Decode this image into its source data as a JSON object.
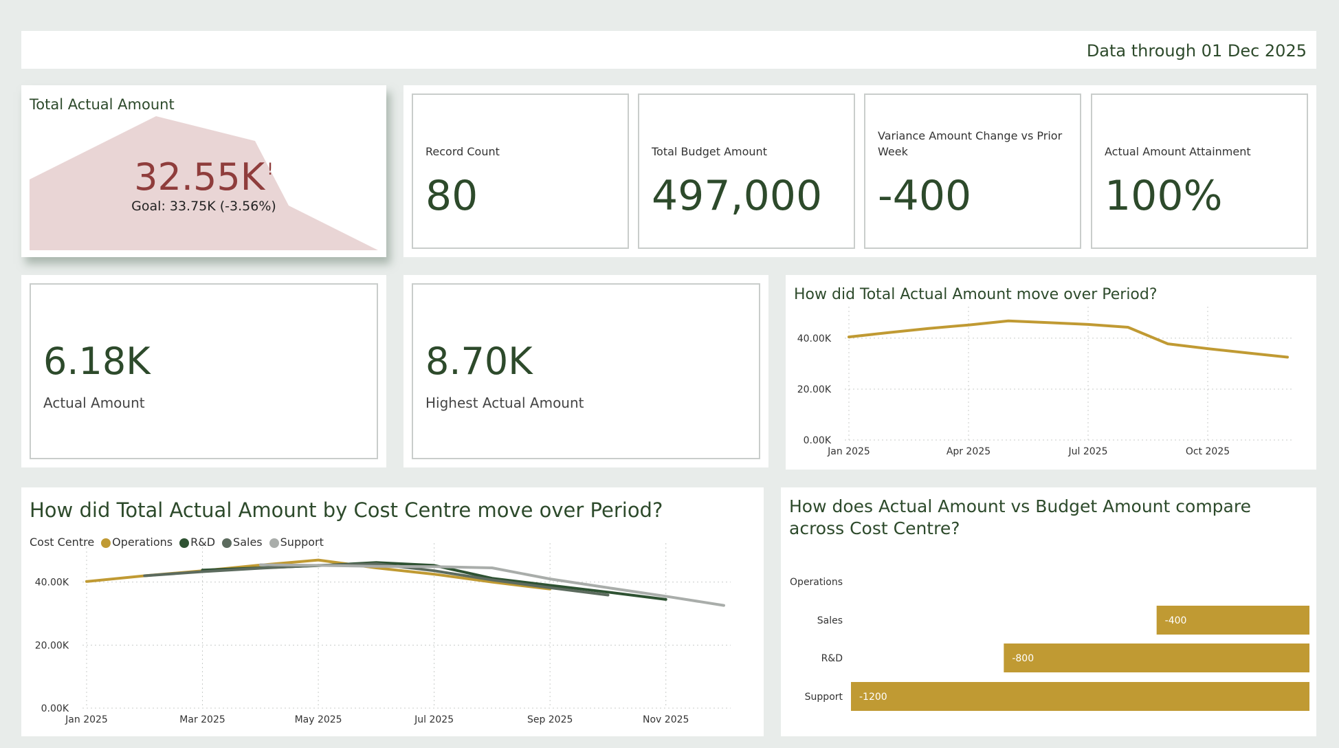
{
  "header": {
    "data_through": "Data through 01 Dec 2025"
  },
  "kpi_hero": {
    "title": "Total Actual Amount",
    "value": "32.55K",
    "alert": "!",
    "goal": "Goal: 33.75K (-3.56%)"
  },
  "kpis": [
    {
      "label": "Record Count",
      "value": "80"
    },
    {
      "label": "Total Budget Amount",
      "value": "497,000"
    },
    {
      "label": "Variance Amount Change vs Prior Week",
      "value": "-400"
    },
    {
      "label": "Actual Amount Attainment",
      "value": "100%"
    }
  ],
  "cards": [
    {
      "value": "6.18K",
      "label": "Actual Amount"
    },
    {
      "value": "8.70K",
      "label": "Highest Actual Amount"
    }
  ],
  "colors": {
    "operations": "#c09a33",
    "rnd": "#2e5232",
    "sales": "#5c6b5e",
    "support": "#a9adaa",
    "hero_value": "#8f3d3c",
    "hero_area": "#e9d5d5",
    "title_green": "#2d4a2b"
  },
  "chart_data": [
    {
      "type": "line",
      "title": "How did Total Actual Amount move over Period?",
      "x": [
        "Jan 2025",
        "Feb 2025",
        "Mar 2025",
        "Apr 2025",
        "May 2025",
        "Jun 2025",
        "Jul 2025",
        "Aug 2025",
        "Sep 2025",
        "Oct 2025",
        "Nov 2025",
        "Dec 2025"
      ],
      "x_tick_labels": [
        "Jan 2025",
        "Apr 2025",
        "Jul 2025",
        "Oct 2025"
      ],
      "series": [
        {
          "values": [
            40500,
            42200,
            43800,
            45200,
            46800,
            46100,
            45400,
            44300,
            37800,
            35900,
            34200,
            32550
          ]
        }
      ],
      "y_tick_labels": [
        "0.00K",
        "20.00K",
        "40.00K"
      ],
      "ylim": [
        0,
        47000
      ],
      "grid": true
    },
    {
      "type": "line",
      "title": "How did Total Actual Amount by Cost Centre move over Period?",
      "legend_title": "Cost Centre",
      "x_tick_labels": [
        "Jan 2025",
        "Mar 2025",
        "May 2025",
        "Jul 2025",
        "Sep 2025",
        "Nov 2025"
      ],
      "series": [
        {
          "name": "Operations",
          "x": [
            "Jan 2025",
            "Feb 2025",
            "Mar 2025",
            "Apr 2025",
            "May 2025",
            "Jun 2025",
            "Jul 2025",
            "Aug 2025",
            "Sep 2025"
          ],
          "values": [
            40200,
            42000,
            43600,
            45400,
            47000,
            44500,
            42500,
            40000,
            37800
          ]
        },
        {
          "name": "R&D",
          "x": [
            "Mar 2025",
            "Apr 2025",
            "May 2025",
            "Jun 2025",
            "Jul 2025",
            "Aug 2025",
            "Sep 2025",
            "Oct 2025",
            "Nov 2025"
          ],
          "values": [
            43800,
            44500,
            45200,
            46200,
            45300,
            41200,
            39000,
            36800,
            34500
          ]
        },
        {
          "name": "Sales",
          "x": [
            "Feb 2025",
            "Mar 2025",
            "Apr 2025",
            "May 2025",
            "Jun 2025",
            "Jul 2025",
            "Aug 2025",
            "Sep 2025",
            "Oct 2025"
          ],
          "values": [
            42000,
            43300,
            44400,
            45300,
            45800,
            43600,
            40700,
            38200,
            35900
          ]
        },
        {
          "name": "Support",
          "x": [
            "Apr 2025",
            "May 2025",
            "Jun 2025",
            "Jul 2025",
            "Aug 2025",
            "Sep 2025",
            "Oct 2025",
            "Nov 2025",
            "Dec 2025"
          ],
          "values": [
            45500,
            45300,
            45000,
            44900,
            44500,
            41000,
            38200,
            35500,
            32600
          ]
        }
      ],
      "y_tick_labels": [
        "0.00K",
        "20.00K",
        "40.00K"
      ],
      "ylim": [
        0,
        48000
      ],
      "grid": true
    },
    {
      "type": "bar",
      "orientation": "horizontal",
      "title": "How does Actual Amount vs Budget Amount compare across Cost Centre?",
      "categories": [
        "Operations",
        "Sales",
        "R&D",
        "Support"
      ],
      "values": [
        0,
        -400,
        -800,
        -1200
      ],
      "data_labels": [
        "",
        "-400",
        "-800",
        "-1200"
      ]
    }
  ]
}
